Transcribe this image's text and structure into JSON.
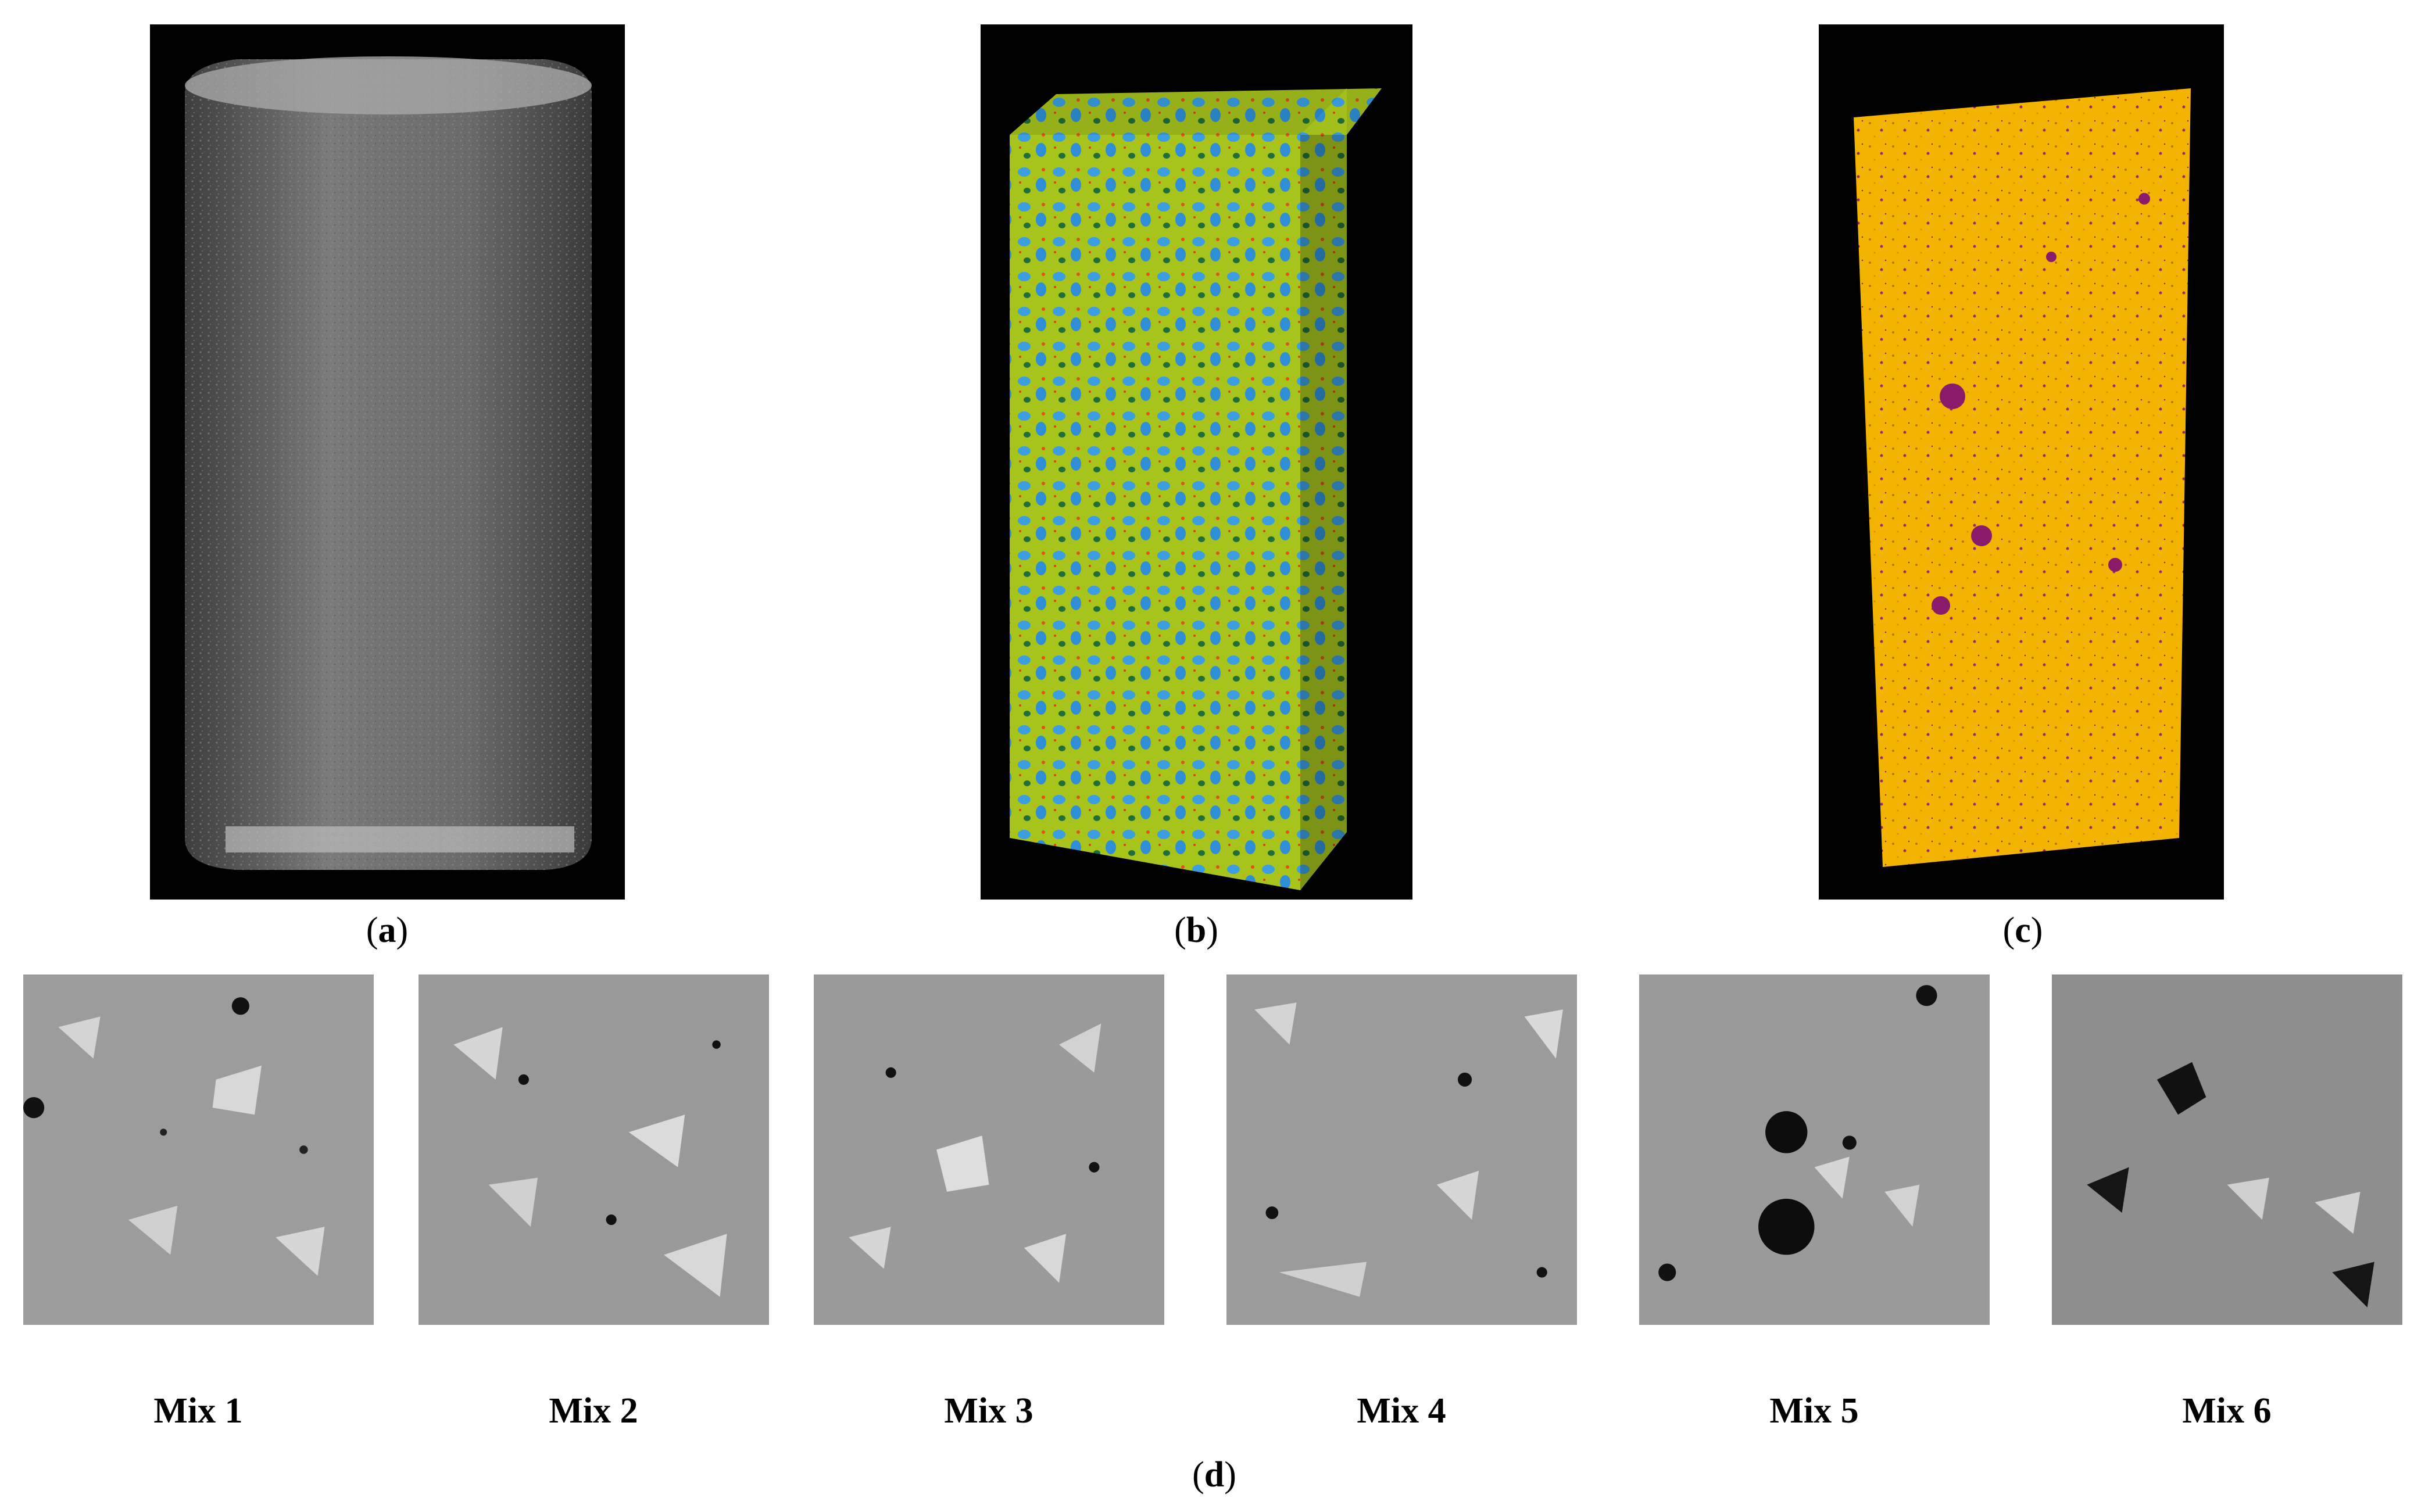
{
  "panels": {
    "a": {
      "label_open": "(",
      "label_letter": "a",
      "label_close": ")"
    },
    "b": {
      "label_open": "(",
      "label_letter": "b",
      "label_close": ")"
    },
    "c": {
      "label_open": "(",
      "label_letter": "c",
      "label_close": ")"
    },
    "d": {
      "label_open": "(",
      "label_letter": "d",
      "label_close": ")"
    }
  },
  "mixes": [
    {
      "label": "Mix 1"
    },
    {
      "label": "Mix 2"
    },
    {
      "label": "Mix 3"
    },
    {
      "label": "Mix 4"
    },
    {
      "label": "Mix 5"
    },
    {
      "label": "Mix 6"
    }
  ],
  "colors": {
    "background": "#ffffff",
    "panel_background": "#000000",
    "cylinder_gray": "#6e6e6e",
    "prism_yellow_green": "#b8c820",
    "prism_blue": "#3aa0e0",
    "pore_orange": "#f2b000",
    "pore_purple": "#8a1a6a",
    "slice_gray": "#9a9a9a"
  }
}
